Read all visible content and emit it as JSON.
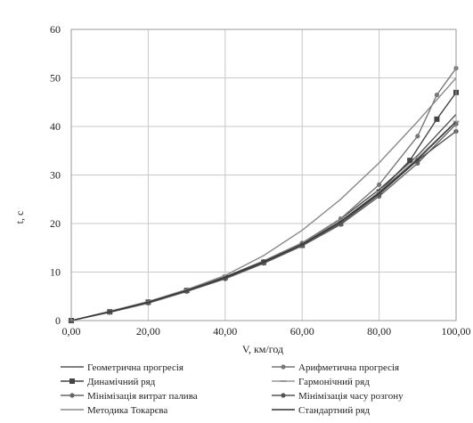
{
  "chart_data": {
    "type": "line",
    "xlabel": "V, км/год",
    "ylabel": "t, c",
    "xlim": [
      0,
      100
    ],
    "ylim": [
      0,
      60
    ],
    "x_tick_labels": [
      "0,00",
      "20,00",
      "40,00",
      "60,00",
      "80,00",
      "100,00"
    ],
    "y_tick_labels": [
      "0",
      "10",
      "20",
      "30",
      "40",
      "50",
      "60"
    ],
    "grid": true,
    "legend_placement": "bottom",
    "series": [
      {
        "name": "Геометрична прогресія",
        "color": "#555555",
        "marker": "none",
        "x": [
          0,
          10,
          20,
          30,
          40,
          50,
          60,
          70,
          80,
          90,
          100
        ],
        "y": [
          0,
          1.9,
          3.9,
          6.3,
          9.0,
          12.3,
          16.0,
          20.9,
          27.0,
          34.0,
          42.5
        ]
      },
      {
        "name": "Арифметична прогресія",
        "color": "#777777",
        "marker": "circle",
        "x": [
          0,
          10,
          20,
          30,
          40,
          50,
          60,
          70,
          80,
          90,
          95,
          100
        ],
        "y": [
          0,
          1.8,
          3.7,
          6.1,
          8.8,
          12.2,
          16.0,
          21.0,
          28.0,
          38.0,
          46.5,
          52.0
        ]
      },
      {
        "name": "Динамічний ряд",
        "color": "#444444",
        "marker": "square",
        "x": [
          0,
          10,
          20,
          30,
          40,
          50,
          60,
          70,
          80,
          88,
          95,
          100
        ],
        "y": [
          0,
          1.8,
          3.8,
          6.2,
          8.9,
          12.0,
          15.5,
          20.0,
          26.5,
          33.0,
          41.5,
          47.0
        ]
      },
      {
        "name": "Гармонічний ряд",
        "color": "#999999",
        "marker": "dash",
        "x": [
          0,
          10,
          20,
          30,
          40,
          50,
          60,
          70,
          80,
          90,
          100
        ],
        "y": [
          0,
          1.9,
          3.9,
          6.2,
          8.9,
          12.0,
          15.8,
          20.5,
          26.5,
          33.5,
          41.0
        ]
      },
      {
        "name": "Мінімізація витрат палива",
        "color": "#666666",
        "marker": "circle",
        "x": [
          0,
          10,
          20,
          30,
          40,
          50,
          60,
          70,
          80,
          90,
          100
        ],
        "y": [
          0,
          1.7,
          3.6,
          6.0,
          8.6,
          11.8,
          15.4,
          19.8,
          25.6,
          32.4,
          40.5
        ]
      },
      {
        "name": "Мінімізація часу розгону",
        "color": "#555555",
        "marker": "circle",
        "x": [
          0,
          10,
          20,
          30,
          40,
          50,
          60,
          70,
          80,
          90,
          100
        ],
        "y": [
          0,
          1.8,
          3.8,
          6.1,
          8.7,
          11.9,
          15.6,
          20.1,
          26.0,
          33.0,
          39.0
        ]
      },
      {
        "name": "Методика Токарєва",
        "color": "#8a8a8a",
        "marker": "none",
        "x": [
          0,
          10,
          20,
          30,
          40,
          50,
          60,
          70,
          80,
          90,
          100
        ],
        "y": [
          0,
          1.8,
          3.9,
          6.4,
          9.3,
          13.4,
          18.6,
          25.0,
          32.5,
          41.0,
          50.0
        ]
      },
      {
        "name": "Стандартний ряд",
        "color": "#333333",
        "marker": "none",
        "x": [
          0,
          10,
          20,
          30,
          40,
          50,
          60,
          70,
          80,
          90,
          100
        ],
        "y": [
          0,
          1.8,
          3.8,
          6.2,
          8.9,
          12.1,
          15.7,
          20.4,
          26.3,
          33.2,
          41.0
        ]
      }
    ]
  }
}
